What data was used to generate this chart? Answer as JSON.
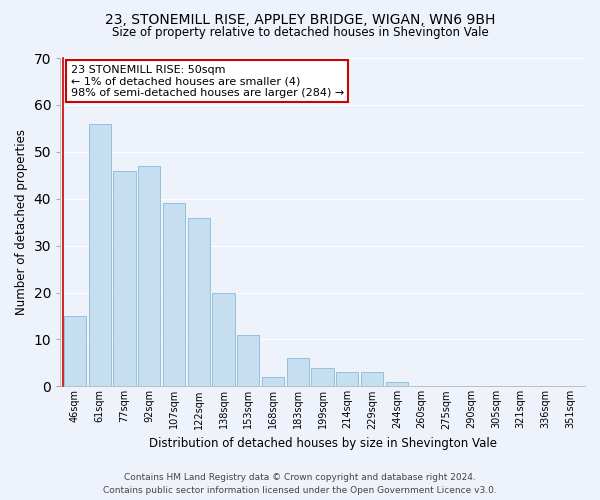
{
  "title1": "23, STONEMILL RISE, APPLEY BRIDGE, WIGAN, WN6 9BH",
  "title2": "Size of property relative to detached houses in Shevington Vale",
  "xlabel": "Distribution of detached houses by size in Shevington Vale",
  "ylabel": "Number of detached properties",
  "categories": [
    "46sqm",
    "61sqm",
    "77sqm",
    "92sqm",
    "107sqm",
    "122sqm",
    "138sqm",
    "153sqm",
    "168sqm",
    "183sqm",
    "199sqm",
    "214sqm",
    "229sqm",
    "244sqm",
    "260sqm",
    "275sqm",
    "290sqm",
    "305sqm",
    "321sqm",
    "336sqm",
    "351sqm"
  ],
  "values": [
    15,
    56,
    46,
    47,
    39,
    36,
    20,
    11,
    2,
    6,
    4,
    3,
    3,
    1,
    0,
    0,
    0,
    0,
    0,
    0,
    0
  ],
  "bar_color": "#c5dff0",
  "bar_edge_color": "#7ab0d4",
  "ylim": [
    0,
    70
  ],
  "yticks": [
    0,
    10,
    20,
    30,
    40,
    50,
    60,
    70
  ],
  "annotation_text": "23 STONEMILL RISE: 50sqm\n← 1% of detached houses are smaller (4)\n98% of semi-detached houses are larger (284) →",
  "annotation_box_color": "#ffffff",
  "annotation_box_edge": "#cc0000",
  "red_line_x": -0.5,
  "footer1": "Contains HM Land Registry data © Crown copyright and database right 2024.",
  "footer2": "Contains public sector information licensed under the Open Government Licence v3.0.",
  "bg_color": "#eef2fb",
  "grid_color": "#ffffff"
}
